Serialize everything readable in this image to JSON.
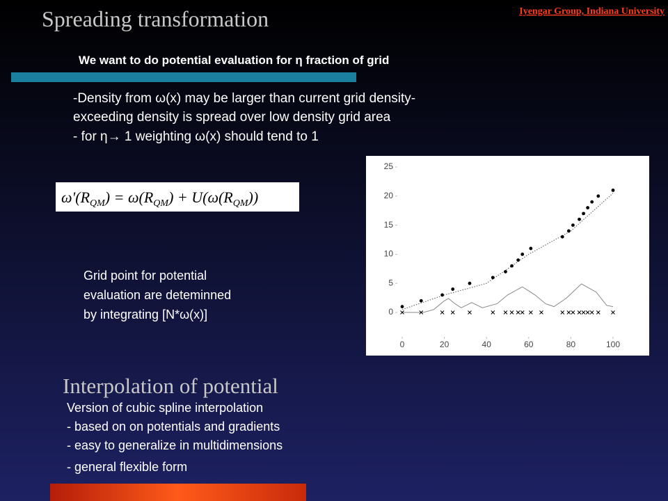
{
  "header": {
    "title": "Spreading transformation",
    "affiliation": "Iyengar Group, Indiana University"
  },
  "subtitle": "We want to do potential evaluation for η fraction of grid",
  "bullets": [
    "-Density from ω(x) may be larger than current grid density-",
    "exceeding density is spread over  low density grid area",
    "-  for η→ 1 weighting ω(x)  should  tend to 1"
  ],
  "formula": [
    "ω'(R",
    "QM",
    ") = ω(R",
    "QM",
    ") + U(ω(R",
    "QM",
    "))"
  ],
  "grid_note": [
    "Grid point for  potential",
    "evaluation are deteminned",
    "by integrating [N*ω(x)]"
  ],
  "section": {
    "title": "Interpolation  of potential",
    "lines": [
      "Version of cubic  spline interpolation",
      "- based on  on potentials and gradients",
      "- easy to generalize in multidimensions",
      "- general flexible form"
    ]
  },
  "chart_data": {
    "type": "scatter",
    "xlim": [
      0,
      100
    ],
    "xticks": [
      0,
      20,
      40,
      60,
      80,
      100
    ],
    "ylim": [
      0,
      25
    ],
    "yticks": [
      0,
      5,
      10,
      15,
      20,
      25
    ],
    "series": [
      {
        "kind": "line",
        "style": "dotted",
        "color": "#555555",
        "x": [
          0,
          20,
          40,
          60,
          80,
          100
        ],
        "values": [
          0.5,
          3,
          5,
          10,
          14,
          20.5
        ]
      },
      {
        "kind": "line",
        "style": "thin",
        "color": "#888888",
        "x": [
          0,
          10,
          15,
          20,
          22,
          25,
          28,
          33,
          38,
          45,
          50,
          57,
          63,
          68,
          72,
          78,
          85,
          92,
          97,
          100
        ],
        "values": [
          0,
          0,
          0.5,
          2,
          2.4,
          1.5,
          0.8,
          1.7,
          0.8,
          1.5,
          3,
          4.4,
          3,
          1.5,
          1,
          2.5,
          4.9,
          3.5,
          1.2,
          1
        ]
      },
      {
        "kind": "dot",
        "color": "#000000",
        "x": [
          0,
          9,
          19,
          24,
          32,
          43,
          49,
          52,
          55,
          57,
          61,
          76,
          79,
          81,
          84,
          86,
          88,
          90,
          93,
          100
        ],
        "values": [
          1,
          2,
          3,
          4,
          5,
          6,
          7,
          8,
          9,
          10,
          11,
          13,
          14,
          15,
          16,
          17,
          18,
          19,
          20,
          21
        ]
      },
      {
        "kind": "cross",
        "color": "#000000",
        "x": [
          0,
          9,
          19,
          24,
          32,
          43,
          49,
          52,
          55,
          57,
          61,
          66,
          76,
          79,
          81,
          84,
          86,
          88,
          90,
          93,
          100
        ],
        "values": [
          0,
          0,
          0,
          0,
          0,
          0,
          0,
          0,
          0,
          0,
          0,
          0,
          0,
          0,
          0,
          0,
          0,
          0,
          0,
          0,
          0
        ]
      }
    ]
  }
}
